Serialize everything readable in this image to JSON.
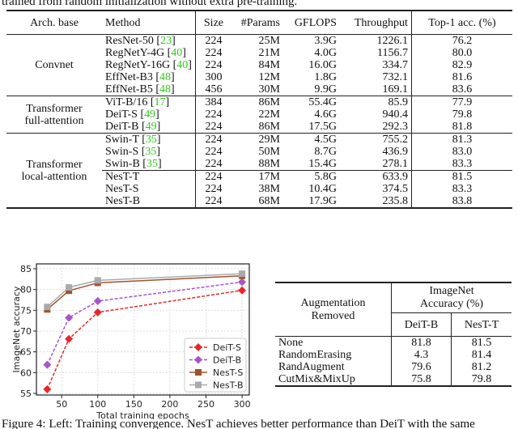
{
  "intro_text": "trained from random initialization without extra pre-training.",
  "table1": {
    "headers": [
      "Arch. base",
      "Method",
      "Size",
      "#Params",
      "GFLOPS",
      "Throughput",
      "Top-1 acc. (%)"
    ],
    "groups": [
      {
        "arch": "Convnet",
        "rows": [
          {
            "method": "ResNet-50",
            "cite": "[23]",
            "cite_num": "23",
            "size": "224",
            "params": "25M",
            "gflops": "3.9G",
            "throughput": "1226.1",
            "acc": "76.2"
          },
          {
            "method": "RegNetY-4G",
            "cite_num": "40",
            "size": "224",
            "params": "21M",
            "gflops": "4.0G",
            "throughput": "1156.7",
            "acc": "80.0"
          },
          {
            "method": "RegNetY-16G",
            "cite_num": "40",
            "size": "224",
            "params": "84M",
            "gflops": "16.0G",
            "throughput": "334.7",
            "acc": "82.9"
          },
          {
            "method": "EffNet-B3",
            "cite_num": "48",
            "size": "300",
            "params": "12M",
            "gflops": "1.8G",
            "throughput": "732.1",
            "acc": "81.6"
          },
          {
            "method": "EffNet-B5",
            "cite_num": "48",
            "size": "456",
            "params": "30M",
            "gflops": "9.9G",
            "throughput": "169.1",
            "acc": "83.6"
          }
        ]
      },
      {
        "arch": "Transformer full-attention",
        "arch_l1": "Transformer",
        "arch_l2": "full-attention",
        "rows": [
          {
            "method": "ViT-B/16",
            "cite_num": "17",
            "size": "384",
            "params": "86M",
            "gflops": "55.4G",
            "throughput": "85.9",
            "acc": "77.9"
          },
          {
            "method": "DeiT-S",
            "cite_num": "49",
            "size": "224",
            "params": "22M",
            "gflops": "4.6G",
            "throughput": "940.4",
            "acc": "79.8"
          },
          {
            "method": "DeiT-B",
            "cite_num": "49",
            "size": "224",
            "params": "86M",
            "gflops": "17.5G",
            "throughput": "292.3",
            "acc": "81.8"
          }
        ]
      },
      {
        "arch": "Transformer local-attention",
        "arch_l1": "Transformer",
        "arch_l2": "local-attention",
        "rows": [
          {
            "method": "Swin-T",
            "cite_num": "35",
            "size": "224",
            "params": "29M",
            "gflops": "4.5G",
            "throughput": "755.2",
            "acc": "81.3"
          },
          {
            "method": "Swin-S",
            "cite_num": "35",
            "size": "224",
            "params": "50M",
            "gflops": "8.7G",
            "throughput": "436.9",
            "acc": "83.0"
          },
          {
            "method": "Swin-B",
            "cite_num": "35",
            "size": "224",
            "params": "88M",
            "gflops": "15.4G",
            "throughput": "278.1",
            "acc": "83.3"
          },
          {
            "method": "NesT-T",
            "size": "224",
            "params": "17M",
            "gflops": "5.8G",
            "throughput": "633.9",
            "acc": "81.5"
          },
          {
            "method": "NesT-S",
            "size": "224",
            "params": "38M",
            "gflops": "10.4G",
            "throughput": "374.5",
            "acc": "83.3"
          },
          {
            "method": "NesT-B",
            "size": "224",
            "params": "68M",
            "gflops": "17.9G",
            "throughput": "235.8",
            "acc": "83.8"
          }
        ]
      }
    ]
  },
  "table2": {
    "header_left_l1": "Augmentation",
    "header_left_l2": "Removed",
    "header_right_l1": "ImageNet",
    "header_right_l2": "Accuracy (%)",
    "sub_headers": [
      "DeiT-B",
      "NesT-T"
    ],
    "rows": [
      {
        "name": "None",
        "deit": "81.8",
        "nest": "81.5"
      },
      {
        "name": "RandomErasing",
        "deit": "4.3",
        "nest": "81.4"
      },
      {
        "name": "RandAugment",
        "deit": "79.6",
        "nest": "81.2"
      },
      {
        "name": "CutMix&MixUp",
        "deit": "75.8",
        "nest": "79.8"
      }
    ]
  },
  "chart_data": {
    "type": "line",
    "xlabel": "Total training epochs",
    "ylabel": "ImageNet accuracy",
    "x": [
      30,
      60,
      100,
      300
    ],
    "xlim": [
      15,
      310
    ],
    "ylim": [
      55,
      85
    ],
    "xticks": [
      50,
      100,
      150,
      200,
      250,
      300
    ],
    "yticks": [
      55,
      60,
      65,
      70,
      75,
      80,
      85
    ],
    "grid": true,
    "legend_position": "lower-right",
    "series": [
      {
        "name": "DeiT-S",
        "values": [
          56.0,
          68.1,
          74.5,
          79.8
        ],
        "color": "#e8262a",
        "dash": true,
        "marker": "diamond"
      },
      {
        "name": "DeiT-B",
        "values": [
          61.9,
          73.2,
          77.2,
          81.8
        ],
        "color": "#a855c8",
        "dash": true,
        "marker": "diamond"
      },
      {
        "name": "NesT-S",
        "values": [
          75.2,
          79.7,
          81.6,
          83.3
        ],
        "color": "#a0522d",
        "dash": false,
        "marker": "square"
      },
      {
        "name": "NesT-B",
        "values": [
          75.8,
          80.5,
          82.2,
          83.8
        ],
        "color": "#aaaaaa",
        "dash": false,
        "marker": "square"
      }
    ]
  },
  "caption": "Figure 4: Left: Training convergence. NesT achieves better performance than DeiT with the same"
}
